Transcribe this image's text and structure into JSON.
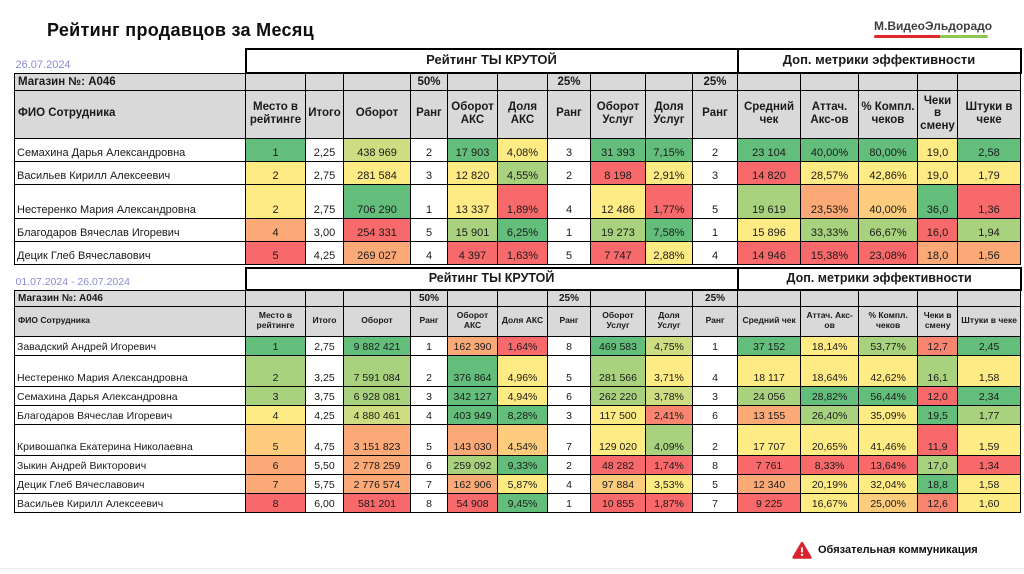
{
  "page": {
    "title": "Рейтинг продавцов за Месяц"
  },
  "logo": {
    "text": "М.ВидеоЭльдорадо",
    "bar_red": "#E3262C",
    "bar_green": "#8CC653"
  },
  "palette": {
    "G": "#63BE7B",
    "LG": "#A9D27F",
    "YG": "#CEDD81",
    "Y": "#FFEB84",
    "YO": "#FDCD7D",
    "O": "#FBAA77",
    "OR": "#F98570",
    "R": "#F8696B",
    "W": "#FFFFFF"
  },
  "header_bg": "#D9D9D9",
  "date_color": "#8A8BD0",
  "tables": [
    {
      "date_label": "26.07.2024",
      "store_label": "Магазин №: А046",
      "band_left": "Рейтинг ТЫ КРУТОЙ",
      "band_right": "Доп. метрики эффективности",
      "weights": [
        "",
        "",
        "",
        "50%",
        "",
        "",
        "25%",
        "",
        "",
        "25%",
        "",
        "",
        "",
        "",
        ""
      ],
      "columns": [
        "ФИО Сотрудника",
        "Место в рейтинге",
        "Итого",
        "Оборот",
        "Ранг",
        "Оборот АКС",
        "Доля АКС",
        "Ранг",
        "Оборот Услуг",
        "Доля Услуг",
        "Ранг",
        "Средний чек",
        "Аттач. Акс-ов",
        "% Компл. чеков",
        "Чеки в смену",
        "Штуки в чеке"
      ],
      "rows": [
        {
          "name": "Семахина Дарья Александровна",
          "tall": false,
          "cells": [
            [
              "1",
              "G"
            ],
            [
              "2,25",
              "W"
            ],
            [
              "438 969",
              "YG"
            ],
            [
              "2",
              "W"
            ],
            [
              "17 903",
              "G"
            ],
            [
              "4,08%",
              "Y"
            ],
            [
              "3",
              "W"
            ],
            [
              "31 393",
              "G"
            ],
            [
              "7,15%",
              "G"
            ],
            [
              "2",
              "W"
            ],
            [
              "23 104",
              "G"
            ],
            [
              "40,00%",
              "G"
            ],
            [
              "80,00%",
              "G"
            ],
            [
              "19,0",
              "Y"
            ],
            [
              "2,58",
              "G"
            ]
          ]
        },
        {
          "name": "Васильев Кирилл Алексеевич",
          "tall": false,
          "cells": [
            [
              "2",
              "Y"
            ],
            [
              "2,75",
              "W"
            ],
            [
              "281 584",
              "Y"
            ],
            [
              "3",
              "W"
            ],
            [
              "12 820",
              "Y"
            ],
            [
              "4,55%",
              "LG"
            ],
            [
              "2",
              "W"
            ],
            [
              "8 198",
              "R"
            ],
            [
              "2,91%",
              "Y"
            ],
            [
              "3",
              "W"
            ],
            [
              "14 820",
              "R"
            ],
            [
              "28,57%",
              "Y"
            ],
            [
              "42,86%",
              "Y"
            ],
            [
              "19,0",
              "Y"
            ],
            [
              "1,79",
              "Y"
            ]
          ]
        },
        {
          "name": "Нестеренко Мария Александровна",
          "tall": true,
          "cells": [
            [
              "2",
              "Y"
            ],
            [
              "2,75",
              "W"
            ],
            [
              "706 290",
              "G"
            ],
            [
              "1",
              "W"
            ],
            [
              "13 337",
              "Y"
            ],
            [
              "1,89%",
              "R"
            ],
            [
              "4",
              "W"
            ],
            [
              "12 486",
              "Y"
            ],
            [
              "1,77%",
              "R"
            ],
            [
              "5",
              "W"
            ],
            [
              "19 619",
              "LG"
            ],
            [
              "23,53%",
              "O"
            ],
            [
              "40,00%",
              "YO"
            ],
            [
              "36,0",
              "G"
            ],
            [
              "1,36",
              "R"
            ]
          ]
        },
        {
          "name": "Благодаров Вячеслав Игоревич",
          "tall": false,
          "cells": [
            [
              "4",
              "O"
            ],
            [
              "3,00",
              "W"
            ],
            [
              "254 331",
              "R"
            ],
            [
              "5",
              "W"
            ],
            [
              "15 901",
              "LG"
            ],
            [
              "6,25%",
              "G"
            ],
            [
              "1",
              "W"
            ],
            [
              "19 273",
              "LG"
            ],
            [
              "7,58%",
              "G"
            ],
            [
              "1",
              "W"
            ],
            [
              "15 896",
              "Y"
            ],
            [
              "33,33%",
              "LG"
            ],
            [
              "66,67%",
              "LG"
            ],
            [
              "16,0",
              "R"
            ],
            [
              "1,94",
              "LG"
            ]
          ]
        },
        {
          "name": "Децик Глеб Вячеславович",
          "tall": false,
          "cells": [
            [
              "5",
              "R"
            ],
            [
              "4,25",
              "W"
            ],
            [
              "269 027",
              "O"
            ],
            [
              "4",
              "W"
            ],
            [
              "4 397",
              "R"
            ],
            [
              "1,63%",
              "R"
            ],
            [
              "5",
              "W"
            ],
            [
              "7 747",
              "R"
            ],
            [
              "2,88%",
              "Y"
            ],
            [
              "4",
              "W"
            ],
            [
              "14 946",
              "R"
            ],
            [
              "15,38%",
              "R"
            ],
            [
              "23,08%",
              "R"
            ],
            [
              "18,0",
              "O"
            ],
            [
              "1,56",
              "O"
            ]
          ]
        }
      ]
    },
    {
      "date_label": "01.07.2024 - 26.07.2024",
      "store_label": "Магазин №: А046",
      "band_left": "Рейтинг ТЫ КРУТОЙ",
      "band_right": "Доп. метрики эффективности",
      "weights": [
        "",
        "",
        "",
        "50%",
        "",
        "",
        "25%",
        "",
        "",
        "25%",
        "",
        "",
        "",
        "",
        ""
      ],
      "columns": [
        "ФИО Сотрудника",
        "Место в рейтинге",
        "Итого",
        "Оборот",
        "Ранг",
        "Оборот АКС",
        "Доля АКС",
        "Ранг",
        "Оборот Услуг",
        "Доля Услуг",
        "Ранг",
        "Средний чек",
        "Аттач. Акс-ов",
        "% Компл. чеков",
        "Чеки в смену",
        "Штуки в чеке"
      ],
      "rows": [
        {
          "name": "Завадский Андрей Игоревич",
          "tall": false,
          "cells": [
            [
              "1",
              "G"
            ],
            [
              "2,75",
              "W"
            ],
            [
              "9 882 421",
              "G"
            ],
            [
              "1",
              "W"
            ],
            [
              "162 390",
              "O"
            ],
            [
              "1,64%",
              "R"
            ],
            [
              "8",
              "W"
            ],
            [
              "469 583",
              "G"
            ],
            [
              "4,75%",
              "YG"
            ],
            [
              "1",
              "W"
            ],
            [
              "37 152",
              "G"
            ],
            [
              "18,14%",
              "Y"
            ],
            [
              "53,77%",
              "LG"
            ],
            [
              "12,7",
              "OR"
            ],
            [
              "2,45",
              "G"
            ]
          ]
        },
        {
          "name": "Нестеренко Мария Александровна",
          "tall": true,
          "cells": [
            [
              "2",
              "LG"
            ],
            [
              "3,25",
              "W"
            ],
            [
              "7 591 084",
              "LG"
            ],
            [
              "2",
              "W"
            ],
            [
              "376 864",
              "G"
            ],
            [
              "4,96%",
              "Y"
            ],
            [
              "5",
              "W"
            ],
            [
              "281 566",
              "LG"
            ],
            [
              "3,71%",
              "Y"
            ],
            [
              "4",
              "W"
            ],
            [
              "18 117",
              "Y"
            ],
            [
              "18,64%",
              "Y"
            ],
            [
              "42,62%",
              "Y"
            ],
            [
              "16,1",
              "LG"
            ],
            [
              "1,58",
              "Y"
            ]
          ]
        },
        {
          "name": "Семахина Дарья Александровна",
          "tall": false,
          "cells": [
            [
              "3",
              "LG"
            ],
            [
              "3,75",
              "W"
            ],
            [
              "6 928 081",
              "LG"
            ],
            [
              "3",
              "W"
            ],
            [
              "342 127",
              "G"
            ],
            [
              "4,94%",
              "Y"
            ],
            [
              "6",
              "W"
            ],
            [
              "262 220",
              "LG"
            ],
            [
              "3,78%",
              "YG"
            ],
            [
              "3",
              "W"
            ],
            [
              "24 056",
              "LG"
            ],
            [
              "28,82%",
              "G"
            ],
            [
              "56,44%",
              "G"
            ],
            [
              "12,0",
              "R"
            ],
            [
              "2,34",
              "G"
            ]
          ]
        },
        {
          "name": "Благодаров Вячеслав Игоревич",
          "tall": false,
          "cells": [
            [
              "4",
              "Y"
            ],
            [
              "4,25",
              "W"
            ],
            [
              "4 880 461",
              "YG"
            ],
            [
              "4",
              "W"
            ],
            [
              "403 949",
              "G"
            ],
            [
              "8,28%",
              "G"
            ],
            [
              "3",
              "W"
            ],
            [
              "117 500",
              "Y"
            ],
            [
              "2,41%",
              "OR"
            ],
            [
              "6",
              "W"
            ],
            [
              "13 155",
              "O"
            ],
            [
              "26,40%",
              "LG"
            ],
            [
              "35,09%",
              "Y"
            ],
            [
              "19,5",
              "G"
            ],
            [
              "1,77",
              "LG"
            ]
          ]
        },
        {
          "name": "Кривошапка Екатерина Николаевна",
          "tall": true,
          "cells": [
            [
              "5",
              "YO"
            ],
            [
              "4,75",
              "W"
            ],
            [
              "3 151 823",
              "O"
            ],
            [
              "5",
              "W"
            ],
            [
              "143 030",
              "O"
            ],
            [
              "4,54%",
              "YO"
            ],
            [
              "7",
              "W"
            ],
            [
              "129 020",
              "Y"
            ],
            [
              "4,09%",
              "LG"
            ],
            [
              "2",
              "W"
            ],
            [
              "17 707",
              "Y"
            ],
            [
              "20,65%",
              "Y"
            ],
            [
              "41,46%",
              "Y"
            ],
            [
              "11,9",
              "R"
            ],
            [
              "1,59",
              "Y"
            ]
          ]
        },
        {
          "name": "Зыкин Андрей Викторович",
          "tall": false,
          "cells": [
            [
              "6",
              "O"
            ],
            [
              "5,50",
              "W"
            ],
            [
              "2 778 259",
              "O"
            ],
            [
              "6",
              "W"
            ],
            [
              "259 092",
              "LG"
            ],
            [
              "9,33%",
              "G"
            ],
            [
              "2",
              "W"
            ],
            [
              "48 282",
              "R"
            ],
            [
              "1,74%",
              "R"
            ],
            [
              "8",
              "W"
            ],
            [
              "7 761",
              "R"
            ],
            [
              "8,33%",
              "R"
            ],
            [
              "13,64%",
              "R"
            ],
            [
              "17,0",
              "LG"
            ],
            [
              "1,34",
              "R"
            ]
          ]
        },
        {
          "name": "Децик Глеб Вячеславович",
          "tall": false,
          "cells": [
            [
              "7",
              "O"
            ],
            [
              "5,75",
              "W"
            ],
            [
              "2 776 574",
              "O"
            ],
            [
              "7",
              "W"
            ],
            [
              "162 906",
              "O"
            ],
            [
              "5,87%",
              "Y"
            ],
            [
              "4",
              "W"
            ],
            [
              "97 884",
              "YO"
            ],
            [
              "3,53%",
              "Y"
            ],
            [
              "5",
              "W"
            ],
            [
              "12 340",
              "O"
            ],
            [
              "20,19%",
              "Y"
            ],
            [
              "32,04%",
              "Y"
            ],
            [
              "18,8",
              "G"
            ],
            [
              "1,58",
              "Y"
            ]
          ]
        },
        {
          "name": "Васильев Кирилл Алексеевич",
          "tall": false,
          "cells": [
            [
              "8",
              "R"
            ],
            [
              "6,00",
              "W"
            ],
            [
              "581 201",
              "R"
            ],
            [
              "8",
              "W"
            ],
            [
              "54 908",
              "R"
            ],
            [
              "9,45%",
              "G"
            ],
            [
              "1",
              "W"
            ],
            [
              "10 855",
              "R"
            ],
            [
              "1,87%",
              "R"
            ],
            [
              "7",
              "W"
            ],
            [
              "9 225",
              "R"
            ],
            [
              "16,67%",
              "Y"
            ],
            [
              "25,00%",
              "YO"
            ],
            [
              "12,6",
              "OR"
            ],
            [
              "1,60",
              "Y"
            ]
          ]
        }
      ]
    }
  ],
  "footer": {
    "warning_label": "Обязательная коммуникация",
    "warning_color": "#D9232E"
  }
}
